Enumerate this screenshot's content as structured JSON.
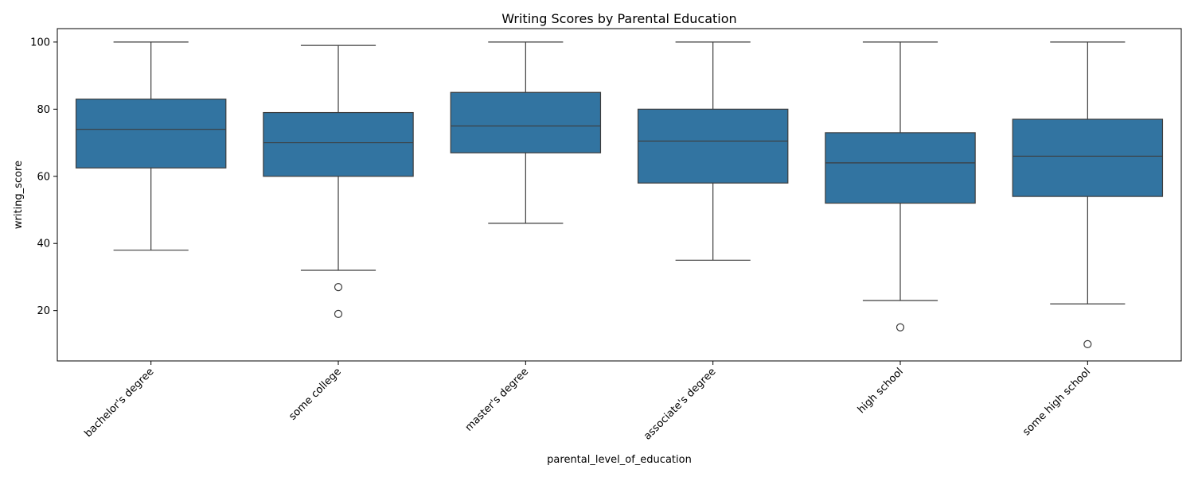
{
  "chart_data": {
    "type": "box",
    "title": "Writing Scores by Parental Education",
    "xlabel": "parental_level_of_education",
    "ylabel": "writing_score",
    "ylim": [
      5,
      104
    ],
    "yticks": [
      20,
      40,
      60,
      80,
      100
    ],
    "grid": false,
    "box_color": "#3274a1",
    "line_color": "#3d3d3d",
    "categories": [
      "bachelor's degree",
      "some college",
      "master's degree",
      "associate's degree",
      "high school",
      "some high school"
    ],
    "boxes": [
      {
        "whisker_low": 38,
        "q1": 62.5,
        "median": 74,
        "q3": 83,
        "whisker_high": 100,
        "outliers": []
      },
      {
        "whisker_low": 32,
        "q1": 60,
        "median": 70,
        "q3": 79,
        "whisker_high": 99,
        "outliers": [
          27,
          19
        ]
      },
      {
        "whisker_low": 46,
        "q1": 67,
        "median": 75,
        "q3": 85,
        "whisker_high": 100,
        "outliers": []
      },
      {
        "whisker_low": 35,
        "q1": 58,
        "median": 70.5,
        "q3": 80,
        "whisker_high": 100,
        "outliers": []
      },
      {
        "whisker_low": 23,
        "q1": 52,
        "median": 64,
        "q3": 73,
        "whisker_high": 100,
        "outliers": [
          15
        ]
      },
      {
        "whisker_low": 22,
        "q1": 54,
        "median": 66,
        "q3": 77,
        "whisker_high": 100,
        "outliers": [
          10
        ]
      }
    ]
  }
}
